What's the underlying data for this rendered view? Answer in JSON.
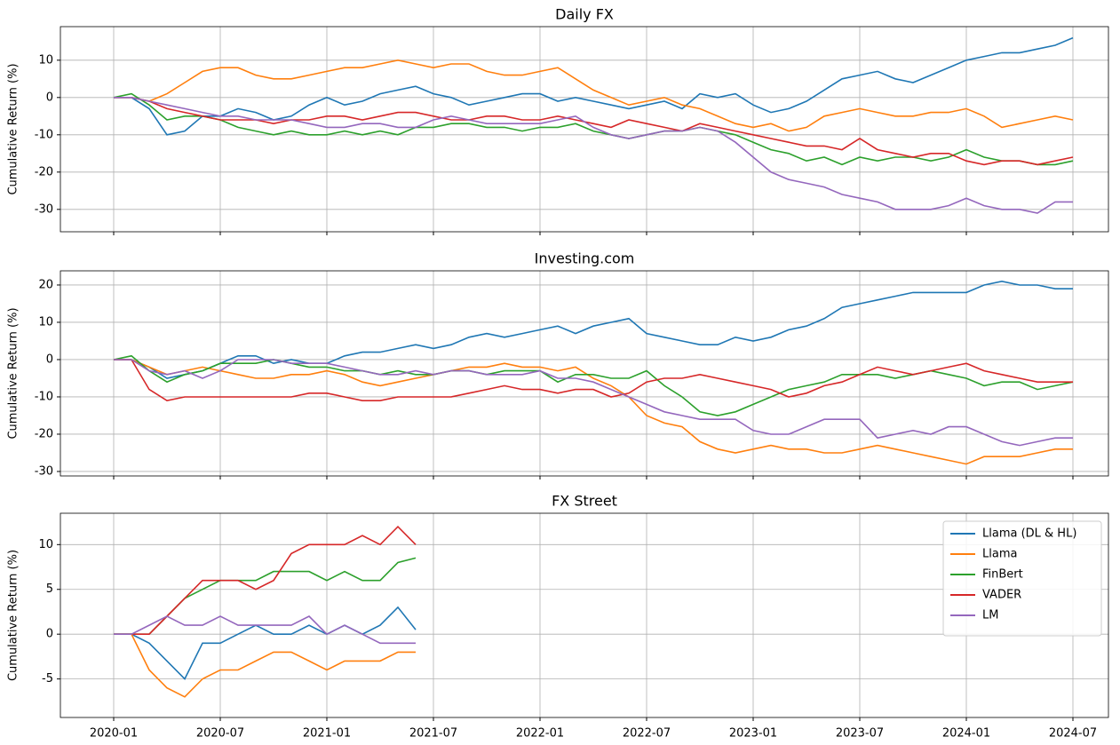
{
  "chart_data": [
    {
      "type": "line",
      "title": "Daily FX",
      "y_label": "Cumulative Return (%)",
      "grid": true,
      "xlim": [
        "2019-10",
        "2024-09"
      ],
      "ylim": [
        -36,
        19
      ],
      "xticks": [
        "2020-01",
        "2020-07",
        "2021-01",
        "2021-07",
        "2022-01",
        "2022-07",
        "2023-01",
        "2023-07",
        "2024-01",
        "2024-07"
      ],
      "yticks": [
        -30,
        -20,
        -10,
        0,
        10
      ],
      "x": [
        "2020-01",
        "2020-02",
        "2020-03",
        "2020-04",
        "2020-05",
        "2020-06",
        "2020-07",
        "2020-08",
        "2020-09",
        "2020-10",
        "2020-11",
        "2020-12",
        "2021-01",
        "2021-02",
        "2021-03",
        "2021-04",
        "2021-05",
        "2021-06",
        "2021-07",
        "2021-08",
        "2021-09",
        "2021-10",
        "2021-11",
        "2021-12",
        "2022-01",
        "2022-02",
        "2022-03",
        "2022-04",
        "2022-05",
        "2022-06",
        "2022-07",
        "2022-08",
        "2022-09",
        "2022-10",
        "2022-11",
        "2022-12",
        "2023-01",
        "2023-02",
        "2023-03",
        "2023-04",
        "2023-05",
        "2023-06",
        "2023-07",
        "2023-08",
        "2023-09",
        "2023-10",
        "2023-11",
        "2023-12",
        "2024-01",
        "2024-02",
        "2024-03",
        "2024-04",
        "2024-05",
        "2024-06",
        "2024-07"
      ],
      "series": [
        {
          "color": "#1f77b4",
          "values": [
            0,
            0,
            -3,
            -10,
            -9,
            -5,
            -5,
            -3,
            -4,
            -6,
            -5,
            -2,
            0,
            -2,
            -1,
            1,
            2,
            3,
            1,
            0,
            -2,
            -1,
            0,
            1,
            1,
            -1,
            0,
            -1,
            -2,
            -3,
            -2,
            -1,
            -3,
            1,
            0,
            1,
            -2,
            -4,
            -3,
            -1,
            2,
            5,
            6,
            7,
            5,
            4,
            6,
            8,
            10,
            11,
            12,
            12,
            13,
            14,
            16
          ]
        },
        {
          "color": "#ff7f0e",
          "values": [
            0,
            0,
            -1,
            1,
            4,
            7,
            8,
            8,
            6,
            5,
            5,
            6,
            7,
            8,
            8,
            9,
            10,
            9,
            8,
            9,
            9,
            7,
            6,
            6,
            7,
            8,
            5,
            2,
            0,
            -2,
            -1,
            0,
            -2,
            -3,
            -5,
            -7,
            -8,
            -7,
            -9,
            -8,
            -5,
            -4,
            -3,
            -4,
            -5,
            -5,
            -4,
            -4,
            -3,
            -5,
            -8,
            -7,
            -6,
            -5,
            -6
          ]
        },
        {
          "color": "#2ca02c",
          "values": [
            0,
            1,
            -2,
            -6,
            -5,
            -5,
            -6,
            -8,
            -9,
            -10,
            -9,
            -10,
            -10,
            -9,
            -10,
            -9,
            -10,
            -8,
            -8,
            -7,
            -7,
            -8,
            -8,
            -9,
            -8,
            -8,
            -7,
            -9,
            -10,
            -11,
            -10,
            -9,
            -9,
            -8,
            -9,
            -10,
            -12,
            -14,
            -15,
            -17,
            -16,
            -18,
            -16,
            -17,
            -16,
            -16,
            -17,
            -16,
            -14,
            -16,
            -17,
            -17,
            -18,
            -18,
            -17
          ]
        },
        {
          "color": "#d62728",
          "values": [
            0,
            0,
            -1,
            -3,
            -4,
            -5,
            -6,
            -6,
            -6,
            -7,
            -6,
            -6,
            -5,
            -5,
            -6,
            -5,
            -4,
            -4,
            -5,
            -6,
            -6,
            -5,
            -5,
            -6,
            -6,
            -5,
            -6,
            -7,
            -8,
            -6,
            -7,
            -8,
            -9,
            -7,
            -8,
            -9,
            -10,
            -11,
            -12,
            -13,
            -13,
            -14,
            -11,
            -14,
            -15,
            -16,
            -15,
            -15,
            -17,
            -18,
            -17,
            -17,
            -18,
            -17,
            -16
          ]
        },
        {
          "color": "#9467bd",
          "values": [
            0,
            0,
            -1,
            -2,
            -3,
            -4,
            -5,
            -5,
            -6,
            -6,
            -6,
            -7,
            -8,
            -8,
            -7,
            -7,
            -8,
            -8,
            -6,
            -5,
            -6,
            -7,
            -7,
            -7,
            -7,
            -6,
            -5,
            -8,
            -10,
            -11,
            -10,
            -9,
            -9,
            -8,
            -9,
            -12,
            -16,
            -20,
            -22,
            -23,
            -24,
            -26,
            -27,
            -28,
            -30,
            -30,
            -30,
            -29,
            -27,
            -29,
            -30,
            -30,
            -31,
            -28,
            -28
          ]
        }
      ]
    },
    {
      "type": "line",
      "title": "Investing.com",
      "y_label": "Cumulative Return (%)",
      "grid": true,
      "xlim": [
        "2019-10",
        "2024-09"
      ],
      "ylim": [
        -31.2,
        23.8
      ],
      "xticks": [
        "2020-01",
        "2020-07",
        "2021-01",
        "2021-07",
        "2022-01",
        "2022-07",
        "2023-01",
        "2023-07",
        "2024-01",
        "2024-07"
      ],
      "yticks": [
        -30,
        -20,
        -10,
        0,
        10,
        20
      ],
      "x": [
        "2020-01",
        "2020-02",
        "2020-03",
        "2020-04",
        "2020-05",
        "2020-06",
        "2020-07",
        "2020-08",
        "2020-09",
        "2020-10",
        "2020-11",
        "2020-12",
        "2021-01",
        "2021-02",
        "2021-03",
        "2021-04",
        "2021-05",
        "2021-06",
        "2021-07",
        "2021-08",
        "2021-09",
        "2021-10",
        "2021-11",
        "2021-12",
        "2022-01",
        "2022-02",
        "2022-03",
        "2022-04",
        "2022-05",
        "2022-06",
        "2022-07",
        "2022-08",
        "2022-09",
        "2022-10",
        "2022-11",
        "2022-12",
        "2023-01",
        "2023-02",
        "2023-03",
        "2023-04",
        "2023-05",
        "2023-06",
        "2023-07",
        "2023-08",
        "2023-09",
        "2023-10",
        "2023-11",
        "2023-12",
        "2024-01",
        "2024-02",
        "2024-03",
        "2024-04",
        "2024-05",
        "2024-06",
        "2024-07"
      ],
      "series": [
        {
          "color": "#1f77b4",
          "values": [
            0,
            0,
            -2,
            -5,
            -4,
            -3,
            -1,
            1,
            1,
            -1,
            0,
            -1,
            -1,
            1,
            2,
            2,
            3,
            4,
            3,
            4,
            6,
            7,
            6,
            7,
            8,
            9,
            7,
            9,
            10,
            11,
            7,
            6,
            5,
            4,
            4,
            6,
            5,
            6,
            8,
            9,
            11,
            14,
            15,
            16,
            17,
            18,
            18,
            18,
            18,
            20,
            21,
            20,
            20,
            19,
            19
          ]
        },
        {
          "color": "#ff7f0e",
          "values": [
            0,
            0,
            -2,
            -4,
            -3,
            -2,
            -3,
            -4,
            -5,
            -5,
            -4,
            -4,
            -3,
            -4,
            -6,
            -7,
            -6,
            -5,
            -4,
            -3,
            -2,
            -2,
            -1,
            -2,
            -2,
            -3,
            -2,
            -5,
            -7,
            -10,
            -15,
            -17,
            -18,
            -22,
            -24,
            -25,
            -24,
            -23,
            -24,
            -24,
            -25,
            -25,
            -24,
            -23,
            -24,
            -25,
            -26,
            -27,
            -28,
            -26,
            -26,
            -26,
            -25,
            -24,
            -24
          ]
        },
        {
          "color": "#2ca02c",
          "values": [
            0,
            1,
            -3,
            -6,
            -4,
            -3,
            -1,
            -1,
            -1,
            0,
            -1,
            -2,
            -2,
            -3,
            -3,
            -4,
            -3,
            -4,
            -4,
            -3,
            -3,
            -4,
            -3,
            -3,
            -3,
            -6,
            -4,
            -4,
            -5,
            -5,
            -3,
            -7,
            -10,
            -14,
            -15,
            -14,
            -12,
            -10,
            -8,
            -7,
            -6,
            -4,
            -4,
            -4,
            -5,
            -4,
            -3,
            -4,
            -5,
            -7,
            -6,
            -6,
            -8,
            -7,
            -6
          ]
        },
        {
          "color": "#d62728",
          "values": [
            0,
            0,
            -8,
            -11,
            -10,
            -10,
            -10,
            -10,
            -10,
            -10,
            -10,
            -9,
            -9,
            -10,
            -11,
            -11,
            -10,
            -10,
            -10,
            -10,
            -9,
            -8,
            -7,
            -8,
            -8,
            -9,
            -8,
            -8,
            -10,
            -9,
            -6,
            -5,
            -5,
            -4,
            -5,
            -6,
            -7,
            -8,
            -10,
            -9,
            -7,
            -6,
            -4,
            -2,
            -3,
            -4,
            -3,
            -2,
            -1,
            -3,
            -4,
            -5,
            -6,
            -6,
            -6
          ]
        },
        {
          "color": "#9467bd",
          "values": [
            0,
            0,
            -3,
            -4,
            -3,
            -5,
            -3,
            0,
            0,
            0,
            -1,
            -1,
            -1,
            -2,
            -3,
            -4,
            -4,
            -3,
            -4,
            -3,
            -3,
            -4,
            -4,
            -4,
            -3,
            -5,
            -5,
            -6,
            -8,
            -10,
            -12,
            -14,
            -15,
            -16,
            -16,
            -16,
            -19,
            -20,
            -20,
            -18,
            -16,
            -16,
            -16,
            -21,
            -20,
            -19,
            -20,
            -18,
            -18,
            -20,
            -22,
            -23,
            -22,
            -21,
            -21
          ]
        }
      ]
    },
    {
      "type": "line",
      "title": "FX Street",
      "y_label": "Cumulative Return (%)",
      "grid": true,
      "legend": "upper right",
      "xlim": [
        "2019-10",
        "2024-09"
      ],
      "ylim": [
        -9.3,
        13.5
      ],
      "xticks": [
        "2020-01",
        "2020-07",
        "2021-01",
        "2021-07",
        "2022-01",
        "2022-07",
        "2023-01",
        "2023-07",
        "2024-01",
        "2024-07"
      ],
      "yticks": [
        -5,
        0,
        5,
        10
      ],
      "x": [
        "2020-01",
        "2020-02",
        "2020-03",
        "2020-04",
        "2020-05",
        "2020-06",
        "2020-07",
        "2020-08",
        "2020-09",
        "2020-10",
        "2020-11",
        "2020-12",
        "2021-01",
        "2021-02",
        "2021-03",
        "2021-04",
        "2021-05",
        "2021-06"
      ],
      "series": [
        {
          "name": "Llama (DL & HL)",
          "color": "#1f77b4",
          "values": [
            0,
            0,
            -1,
            -3,
            -5,
            -1,
            -1,
            0,
            1,
            0,
            0,
            1,
            0,
            1,
            0,
            1,
            3,
            0.5
          ]
        },
        {
          "name": "Llama",
          "color": "#ff7f0e",
          "values": [
            0,
            0,
            -4,
            -6,
            -7,
            -5,
            -4,
            -4,
            -3,
            -2,
            -2,
            -3,
            -4,
            -3,
            -3,
            -3,
            -2,
            -2
          ]
        },
        {
          "name": "FinBert",
          "color": "#2ca02c",
          "values": [
            0,
            0,
            0,
            2,
            4,
            5,
            6,
            6,
            6,
            7,
            7,
            7,
            6,
            7,
            6,
            6,
            8,
            8.5
          ]
        },
        {
          "name": "VADER",
          "color": "#d62728",
          "values": [
            0,
            0,
            0,
            2,
            4,
            6,
            6,
            6,
            5,
            6,
            9,
            10,
            10,
            10,
            11,
            10,
            12,
            10
          ]
        },
        {
          "name": "LM",
          "color": "#9467bd",
          "values": [
            0,
            0,
            1,
            2,
            1,
            1,
            2,
            1,
            1,
            1,
            1,
            2,
            0,
            1,
            0,
            -1,
            -1,
            -1
          ]
        }
      ]
    }
  ]
}
